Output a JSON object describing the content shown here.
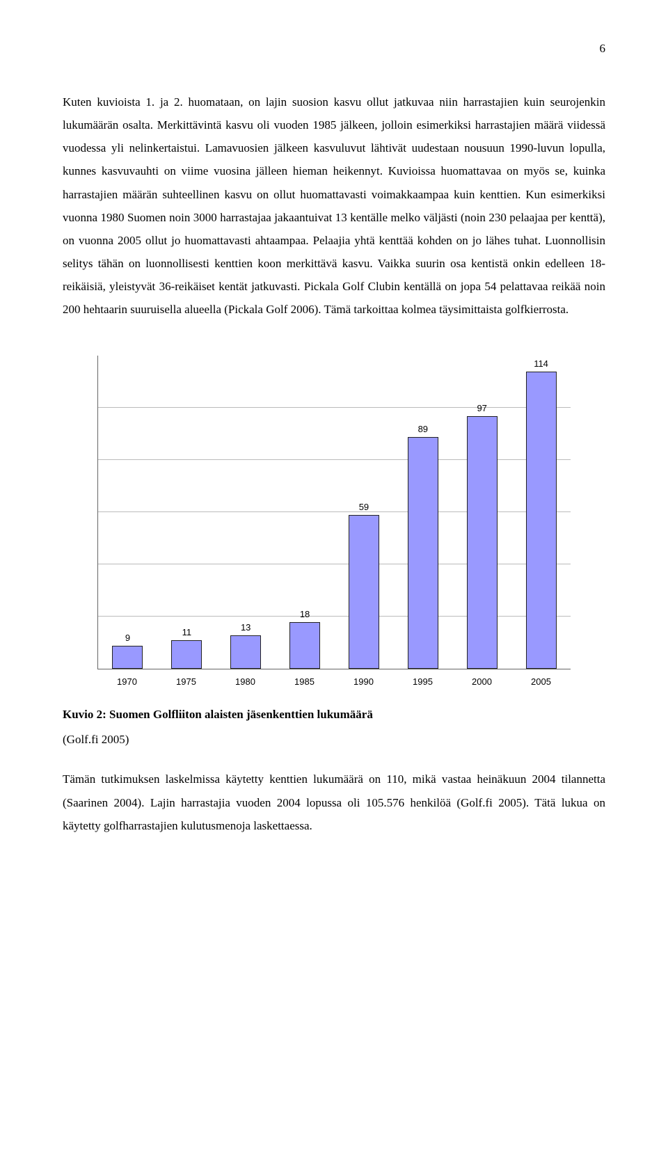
{
  "page_number": "6",
  "body_paragraph": "Kuten kuvioista 1. ja 2. huomataan, on lajin suosion kasvu ollut jatkuvaa niin harrastajien kuin seurojenkin lukumäärän osalta. Merkittävintä kasvu oli vuoden 1985 jälkeen, jolloin esimerkiksi harrastajien määrä viidessä vuodessa yli nelinkertaistui. Lamavuosien jälkeen kasvuluvut lähtivät uudestaan nousuun 1990-luvun lopulla, kunnes kasvuvauhti on viime vuosina jälleen hieman heikennyt. Kuvioissa huomattavaa on myös se, kuinka harrastajien määrän suhteellinen kasvu on ollut huomattavasti voimakkaampaa kuin kenttien. Kun esimerkiksi vuonna 1980 Suomen noin 3000 harrastajaa jakaantuivat 13 kentälle melko väljästi (noin 230 pelaajaa per kenttä), on vuonna 2005 ollut jo huomattavasti ahtaampaa. Pelaajia yhtä kenttää kohden on jo lähes tuhat. Luonnollisin selitys tähän on luonnollisesti kenttien koon merkittävä kasvu. Vaikka suurin osa kentistä onkin edelleen 18-reikäisiä, yleistyvät 36-reikäiset kentät jatkuvasti. Pickala Golf Clubin kentällä on jopa 54 pelattavaa reikää noin 200 hehtaarin suuruisella alueella (Pickala Golf 2006). Tämä tarkoittaa kolmea täysimittaista golfkierrosta.",
  "chart": {
    "type": "bar",
    "categories": [
      "1970",
      "1975",
      "1980",
      "1985",
      "1990",
      "1995",
      "2000",
      "2005"
    ],
    "values": [
      9,
      11,
      13,
      18,
      59,
      89,
      97,
      114
    ],
    "ymax": 120,
    "gridlines_pct": [
      16.67,
      33.33,
      50,
      66.67,
      83.33
    ],
    "bar_fill": "#9999ff",
    "bar_border": "#222222",
    "grid_color": "#bbbbbb",
    "axis_color": "#666666",
    "label_fontsize": 13,
    "label_font": "Arial"
  },
  "caption": "Kuvio 2: Suomen Golfliiton alaisten jäsenkenttien lukumäärä",
  "source": "(Golf.fi 2005)",
  "footer_paragraph": "Tämän tutkimuksen laskelmissa käytetty kenttien lukumäärä on 110, mikä vastaa heinäkuun 2004 tilannetta (Saarinen 2004). Lajin harrastajia vuoden 2004 lopussa oli 105.576 henkilöä (Golf.fi 2005). Tätä lukua on käytetty golfharrastajien kulutusmenoja laskettaessa."
}
